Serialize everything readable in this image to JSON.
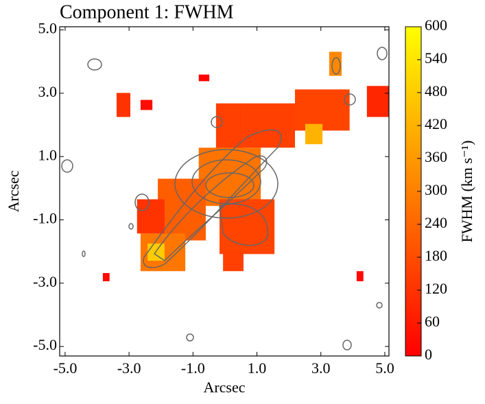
{
  "chart_data": {
    "type": "map",
    "title": "Component 1: FWHM",
    "x_label": "Arcsec",
    "y_label": "Arcsec",
    "xlim": [
      -5.17,
      5.13
    ],
    "ylim": [
      -5.3,
      5.1
    ],
    "xticks": [
      {
        "value": -5,
        "label": "-5.0"
      },
      {
        "value": -3,
        "label": "-3.0"
      },
      {
        "value": -1,
        "label": "-1.0"
      },
      {
        "value": 1,
        "label": "1.0"
      },
      {
        "value": 3,
        "label": "3.0"
      },
      {
        "value": 5,
        "label": "5.0"
      }
    ],
    "yticks": [
      {
        "value": -5,
        "label": "-5.0"
      },
      {
        "value": -3,
        "label": "-3.0"
      },
      {
        "value": -1,
        "label": "-1.0"
      },
      {
        "value": 1,
        "label": "1.0"
      },
      {
        "value": 3,
        "label": "3.0"
      },
      {
        "value": 5,
        "label": "5.0"
      }
    ],
    "colorbar": {
      "label": "FWHM (km s⁻¹)",
      "lim": [
        0,
        600
      ],
      "ticks": [
        0,
        60,
        120,
        180,
        240,
        300,
        360,
        420,
        480,
        540,
        600
      ],
      "colormap": "autumn"
    },
    "patches": [
      {
        "x": [
          -0.28,
          0.58
        ],
        "y": [
          0.95,
          2.68
        ],
        "value": 150
      },
      {
        "x": [
          0.58,
          2.19
        ],
        "y": [
          1.28,
          2.68
        ],
        "value": 150
      },
      {
        "x": [
          2.19,
          3.9
        ],
        "y": [
          1.82,
          3.12
        ],
        "value": 160
      },
      {
        "x": [
          2.51,
          3.05
        ],
        "y": [
          1.39,
          2.03
        ],
        "value": 420
      },
      {
        "x": [
          4.44,
          5.13
        ],
        "y": [
          2.25,
          3.23
        ],
        "value": 90
      },
      {
        "x": [
          -0.82,
          1.12
        ],
        "y": [
          -0.56,
          1.28
        ],
        "value": 270
      },
      {
        "x": [
          -2.1,
          -0.6
        ],
        "y": [
          -1.65,
          0.3
        ],
        "value": 220
      },
      {
        "x": [
          -2.75,
          -1.89
        ],
        "y": [
          -1.43,
          -0.35
        ],
        "value": 120
      },
      {
        "x": [
          -2.64,
          -1.24
        ],
        "y": [
          -2.62,
          -1.43
        ],
        "value": 280
      },
      {
        "x": [
          -2.42,
          -1.89
        ],
        "y": [
          -2.29,
          -1.75
        ],
        "value": 480
      },
      {
        "x": [
          -0.17,
          1.55
        ],
        "y": [
          -2.08,
          -0.35
        ],
        "value": 160
      },
      {
        "x": [
          -0.06,
          0.58
        ],
        "y": [
          -2.62,
          -1.97
        ],
        "value": 150
      },
      {
        "x": [
          -3.39,
          -2.96
        ],
        "y": [
          2.25,
          3.01
        ],
        "value": 120
      },
      {
        "x": [
          -2.64,
          -2.27
        ],
        "y": [
          2.47,
          2.79
        ],
        "value": 30
      },
      {
        "x": [
          3.26,
          3.65
        ],
        "y": [
          3.55,
          4.31
        ],
        "value": 320
      },
      {
        "x": [
          4.12,
          4.33
        ],
        "y": [
          -2.94,
          -2.62
        ],
        "value": 20
      },
      {
        "x": [
          -3.82,
          -3.61
        ],
        "y": [
          -2.94,
          -2.68
        ],
        "value": 20
      },
      {
        "x": [
          -0.82,
          -0.49
        ],
        "y": [
          3.38,
          3.59
        ],
        "value": 10
      }
    ]
  }
}
